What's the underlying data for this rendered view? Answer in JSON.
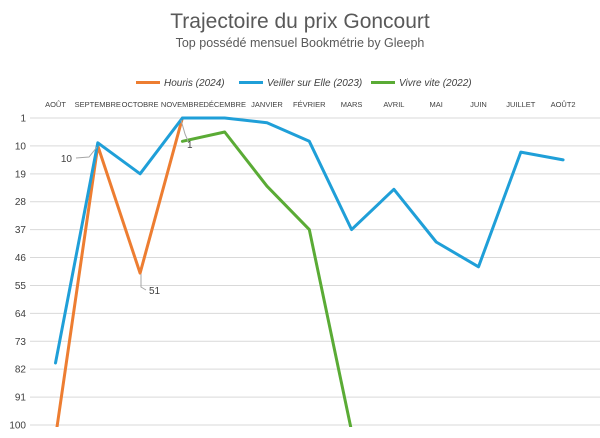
{
  "chart_data": {
    "type": "line",
    "title": "Trajectoire du prix Goncourt",
    "subtitle": "Top possédé mensuel Bookmétrie by Gleeph",
    "categories": [
      "AOÛT",
      "SEPTEMBRE",
      "OCTOBRE",
      "NOVEMBRE",
      "DÉCEMBRE",
      "JANVIER",
      "FÉVRIER",
      "MARS",
      "AVRIL",
      "MAI",
      "JUIN",
      "JUILLET",
      "AOÛT2"
    ],
    "y_axis": {
      "reversed": true,
      "ylim": [
        1,
        100
      ],
      "ticks": [
        "1",
        "10",
        "19",
        "28",
        "37",
        "46",
        "55",
        "64",
        "73",
        "82",
        "91",
        "100"
      ]
    },
    "grid": true,
    "legend_position": "top",
    "series": [
      {
        "name": "Houris (2024)",
        "color": "#ed7d31",
        "values": [
          104,
          10,
          51,
          1,
          null,
          null,
          null,
          null,
          null,
          null,
          null,
          null,
          null
        ]
      },
      {
        "name": "Veiller sur Elle (2023)",
        "color": "#1f9fd8",
        "values": [
          80,
          9,
          19,
          1,
          1,
          2.5,
          8.5,
          37,
          24,
          41,
          49,
          12,
          14.5
        ]
      },
      {
        "name": "Vivre vite (2022)",
        "color": "#5aab35",
        "values": [
          null,
          null,
          null,
          8.5,
          5.5,
          23,
          37,
          102,
          null,
          null,
          null,
          null,
          null
        ]
      }
    ],
    "annotations": [
      {
        "text": "10",
        "series": "Houris (2024)",
        "category": "SEPTEMBRE"
      },
      {
        "text": "51",
        "series": "Houris (2024)",
        "category": "OCTOBRE"
      },
      {
        "text": "1",
        "series": "Houris (2024)",
        "category": "NOVEMBRE"
      }
    ]
  }
}
